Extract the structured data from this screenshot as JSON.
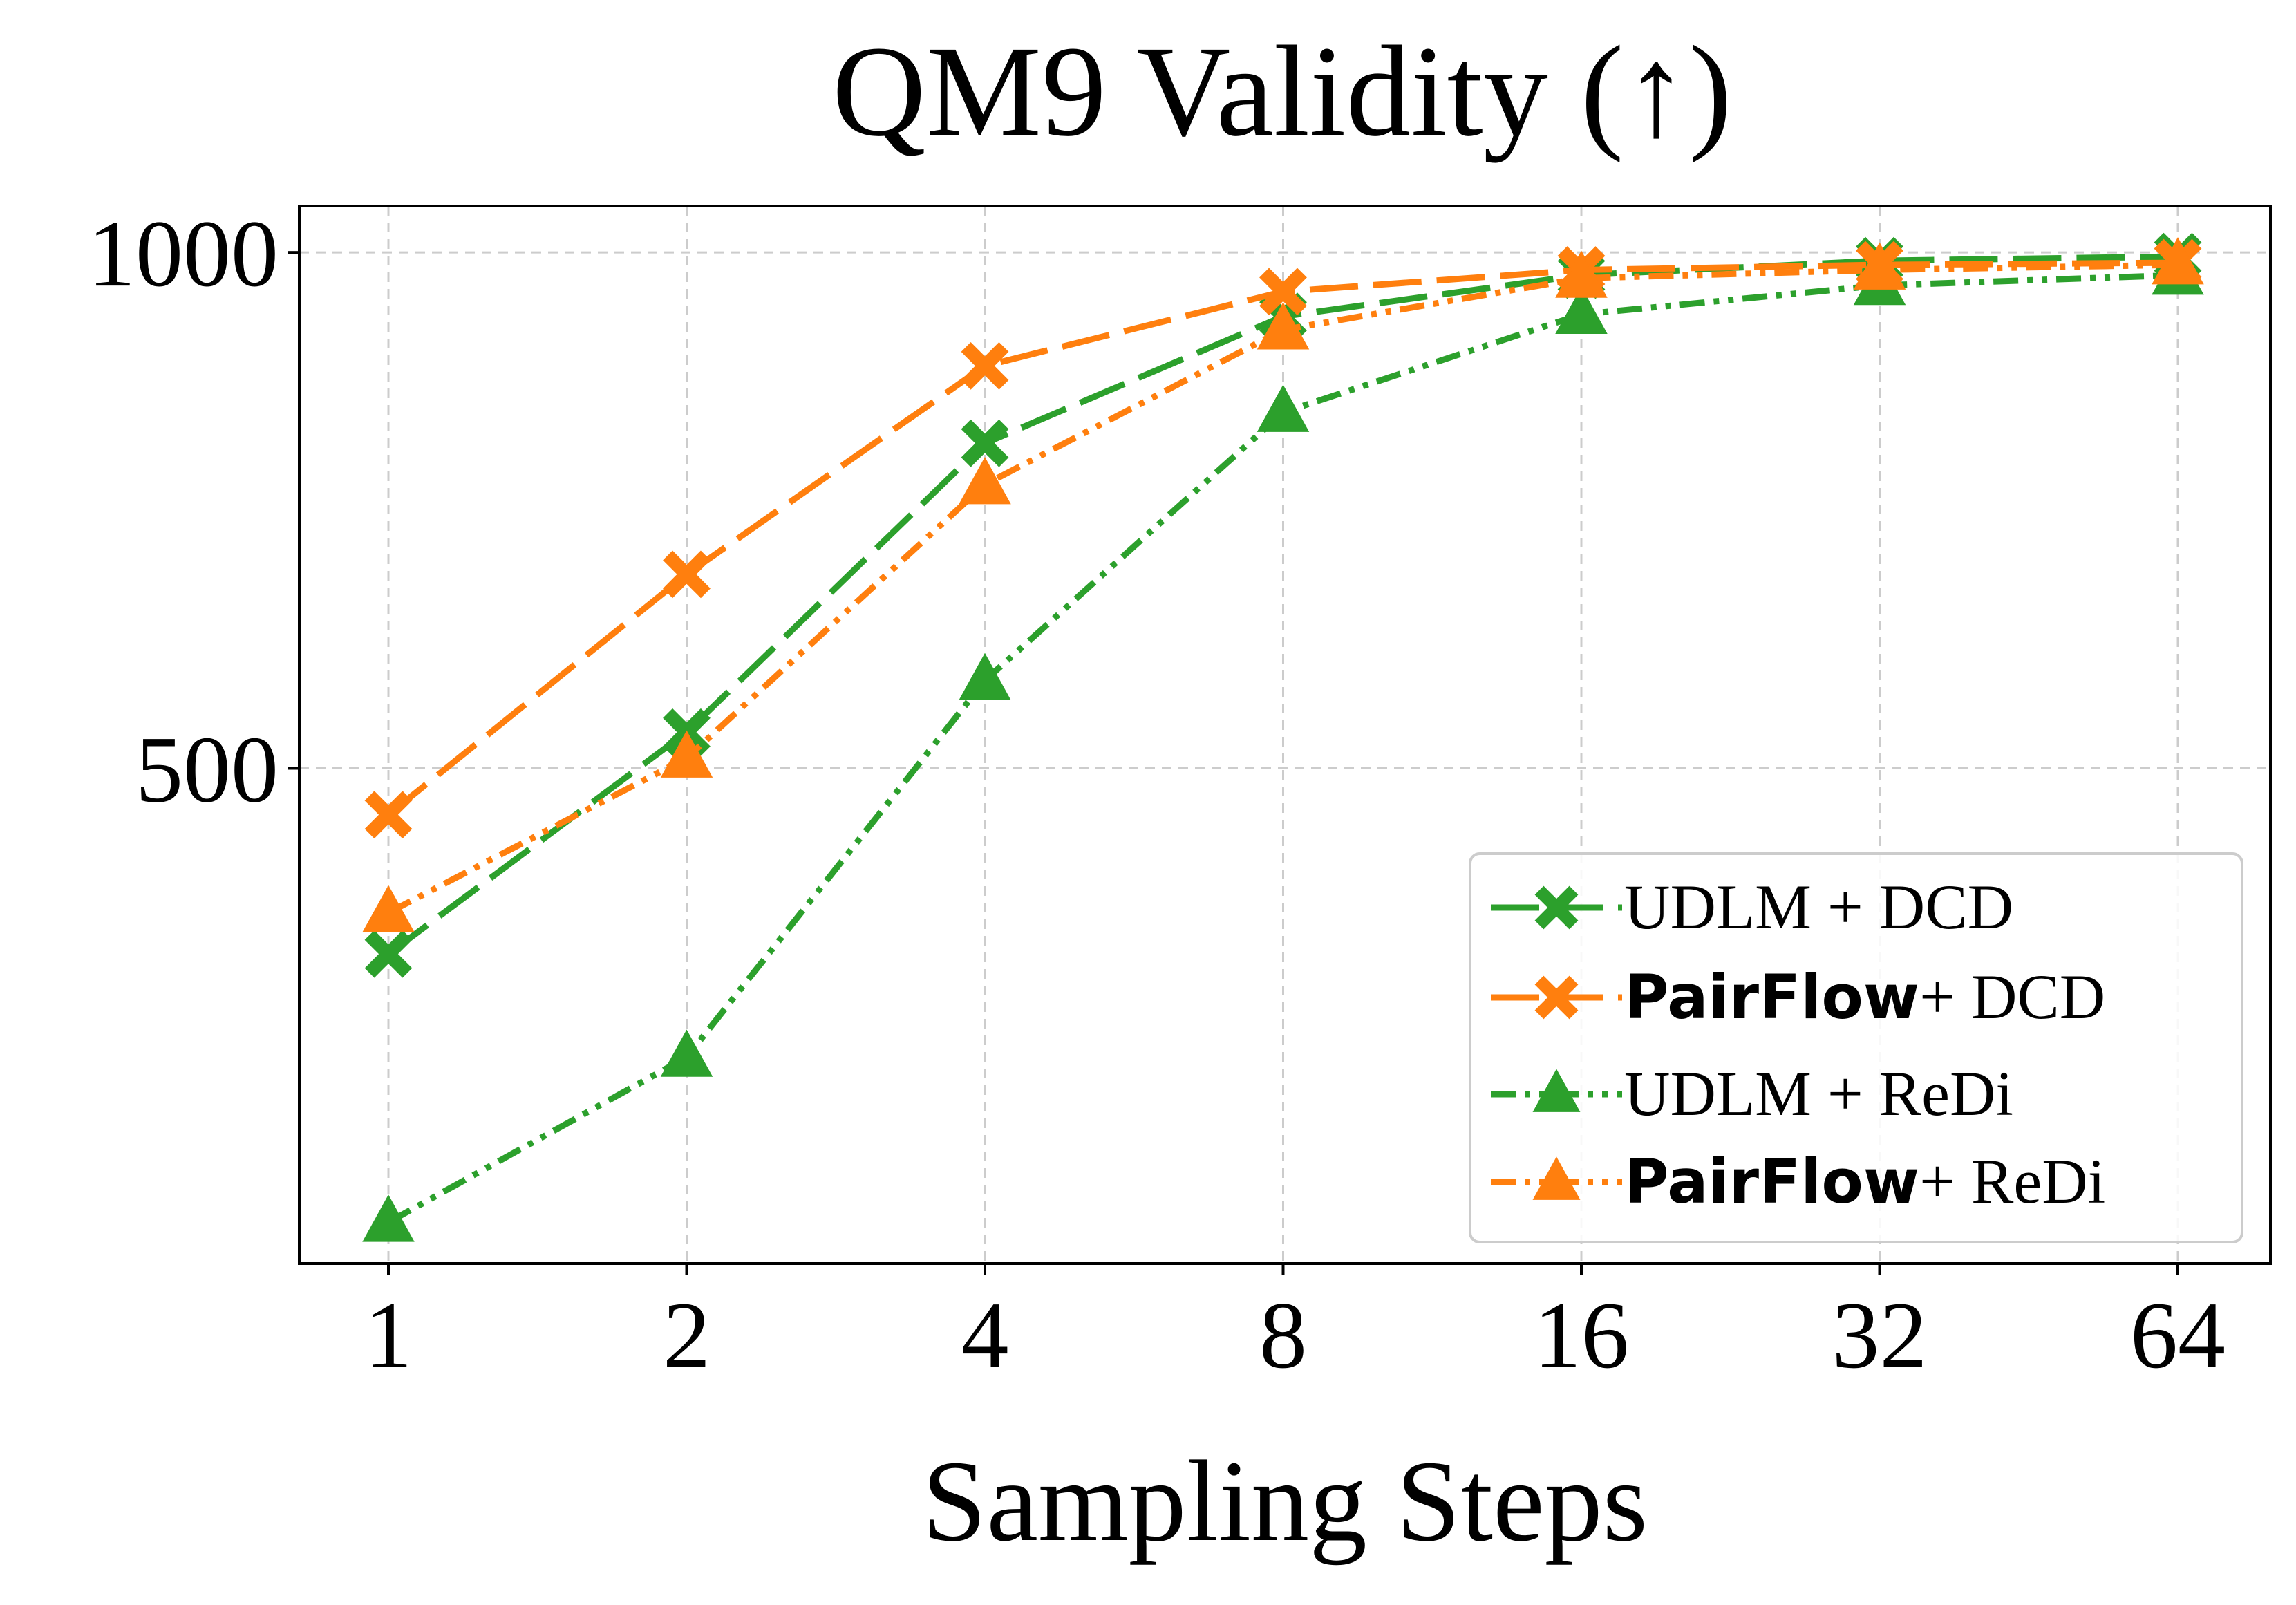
{
  "chart_data": {
    "type": "line",
    "title": "QM9 Validity (↑)",
    "xlabel": "Sampling Steps",
    "ylabel": "",
    "x": [
      1,
      2,
      4,
      8,
      16,
      32,
      64
    ],
    "x_tick_labels": [
      "1",
      "2",
      "4",
      "8",
      "16",
      "32",
      "64"
    ],
    "y_ticks": [
      500,
      1000
    ],
    "y_tick_labels": [
      "500",
      "1000"
    ],
    "ylim": [
      20,
      1045
    ],
    "grid": true,
    "legend_position": "lower-right",
    "series": [
      {
        "name": "UDLM + DCD",
        "legend_bold": "",
        "legend_rest": "UDLM + DCD",
        "color": "#2ca02c",
        "marker": "X",
        "linestyle": "long-dash",
        "values": [
          320,
          535,
          815,
          938,
          978,
          992,
          996
        ]
      },
      {
        "name": "PairFlow + DCD",
        "legend_bold": "PairFlow",
        "legend_rest": "+ DCD",
        "color": "#ff7f0e",
        "marker": "X",
        "linestyle": "long-dash",
        "values": [
          455,
          688,
          890,
          962,
          983,
          988,
          990
        ]
      },
      {
        "name": "UDLM + ReDi",
        "legend_bold": "",
        "legend_rest": "UDLM + ReDi",
        "color": "#2ca02c",
        "marker": "triangle",
        "linestyle": "dash-dot-dot",
        "values": [
          60,
          220,
          585,
          845,
          940,
          968,
          978
        ]
      },
      {
        "name": "PairFlow + ReDi",
        "legend_bold": "PairFlow",
        "legend_rest": "+ ReDi",
        "color": "#ff7f0e",
        "marker": "triangle",
        "linestyle": "dash-dot-dot",
        "values": [
          360,
          510,
          775,
          925,
          975,
          983,
          988
        ]
      }
    ]
  }
}
